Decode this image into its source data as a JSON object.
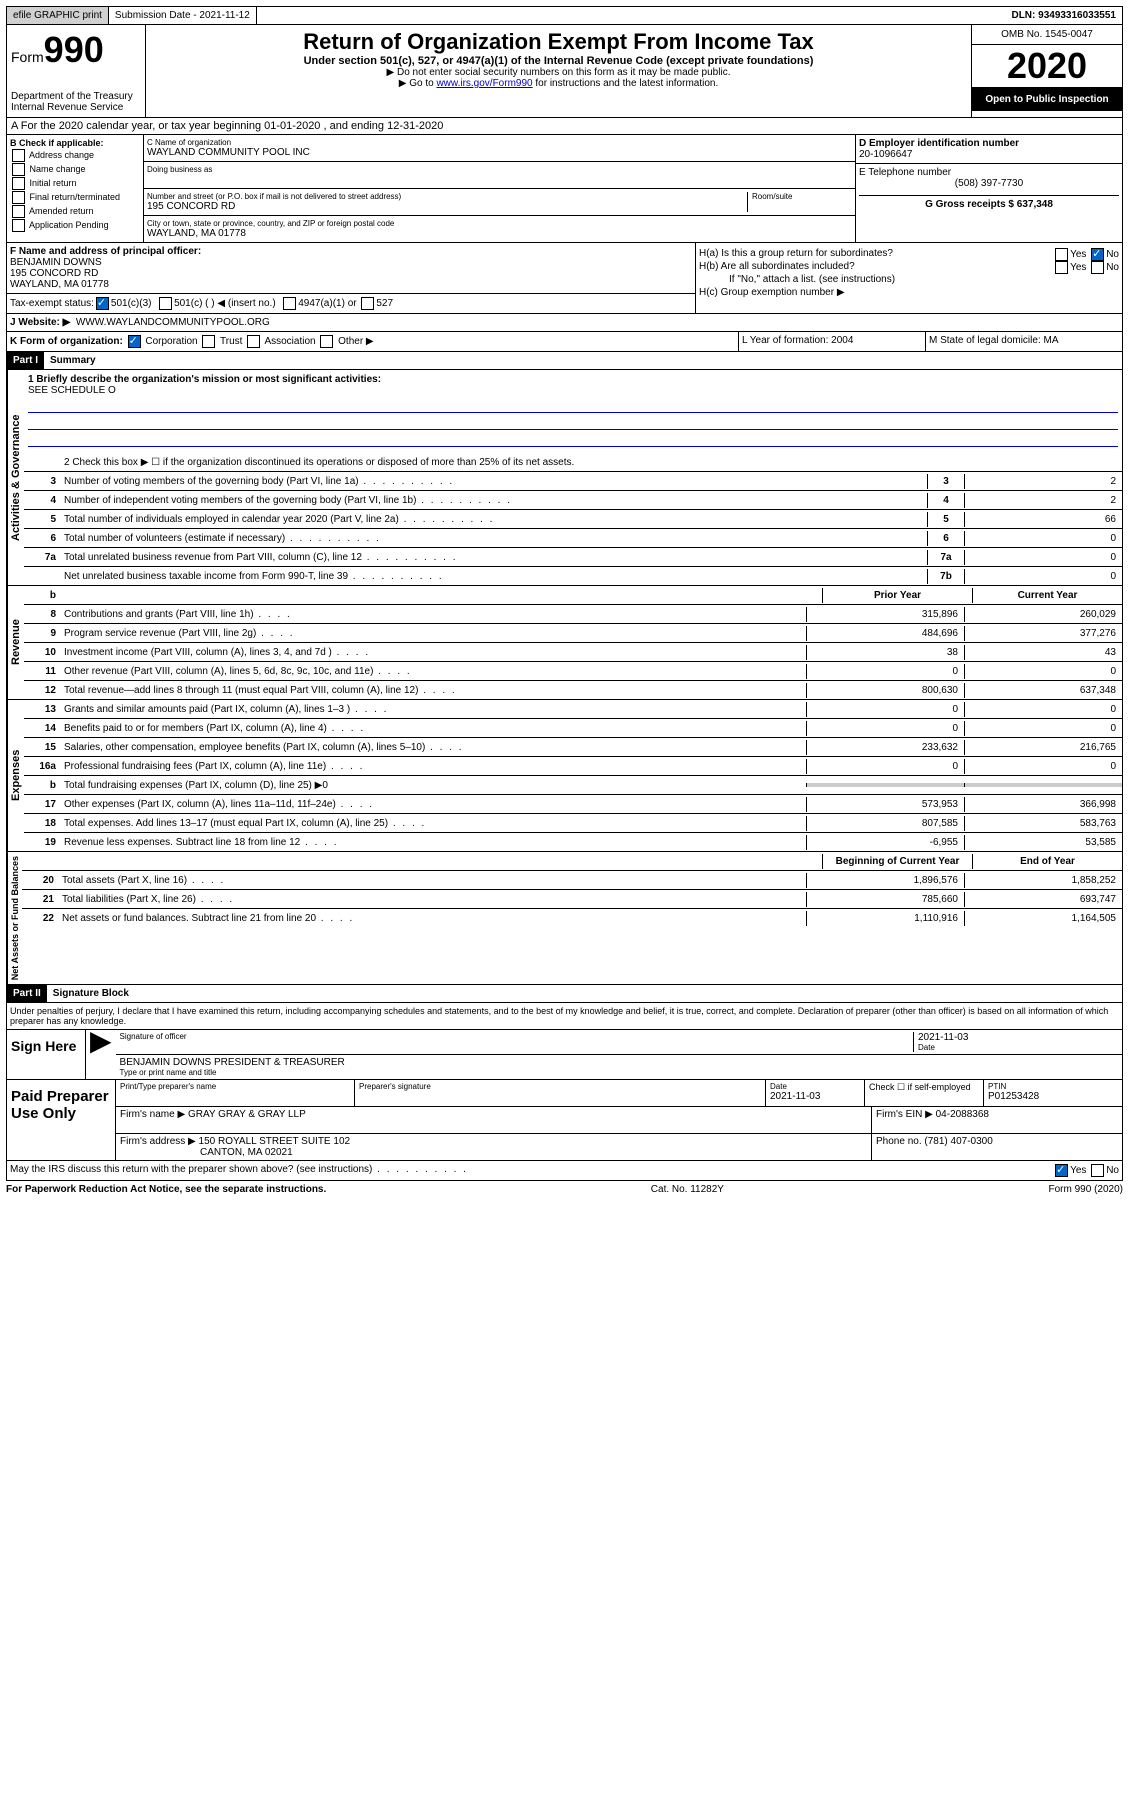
{
  "topbar": {
    "efile": "efile GRAPHIC print",
    "subm_label": "Submission Date - 2021-11-12",
    "dln": "DLN: 93493316033551"
  },
  "header": {
    "form_prefix": "Form",
    "form_num": "990",
    "dept": "Department of the Treasury",
    "irs": "Internal Revenue Service",
    "title": "Return of Organization Exempt From Income Tax",
    "sub": "Under section 501(c), 527, or 4947(a)(1) of the Internal Revenue Code (except private foundations)",
    "note1": "▶ Do not enter social security numbers on this form as it may be made public.",
    "note2_pre": "▶ Go to ",
    "note2_link": "www.irs.gov/Form990",
    "note2_post": " for instructions and the latest information.",
    "omb": "OMB No. 1545-0047",
    "year": "2020",
    "open": "Open to Public Inspection"
  },
  "section_a": "A  For the 2020 calendar year, or tax year beginning 01-01-2020    , and ending 12-31-2020",
  "box_b": {
    "label": "B Check if applicable:",
    "items": [
      "Address change",
      "Name change",
      "Initial return",
      "Final return/terminated",
      "Amended return",
      "Application Pending"
    ]
  },
  "box_c": {
    "name_label": "C Name of organization",
    "name": "WAYLAND COMMUNITY POOL INC",
    "dba_label": "Doing business as",
    "addr_label": "Number and street (or P.O. box if mail is not delivered to street address)",
    "room_label": "Room/suite",
    "addr": "195 CONCORD RD",
    "city_label": "City or town, state or province, country, and ZIP or foreign postal code",
    "city": "WAYLAND, MA  01778"
  },
  "box_d": {
    "ein_label": "D Employer identification number",
    "ein": "20-1096647",
    "phone_label": "E Telephone number",
    "phone": "(508) 397-7730",
    "gross_label": "G Gross receipts $ 637,348"
  },
  "box_f": {
    "label": "F  Name and address of principal officer:",
    "name": "BENJAMIN DOWNS",
    "addr1": "195 CONCORD RD",
    "addr2": "WAYLAND, MA  01778"
  },
  "box_h": {
    "a": "H(a)  Is this a group return for subordinates?",
    "b": "H(b)  Are all subordinates included?",
    "note": "If \"No,\" attach a list. (see instructions)",
    "c": "H(c)  Group exemption number ▶"
  },
  "tax_status": {
    "label": "Tax-exempt status:",
    "opts": [
      "501(c)(3)",
      "501(c) (  ) ◀ (insert no.)",
      "4947(a)(1) or",
      "527"
    ]
  },
  "website": {
    "label": "J  Website: ▶",
    "value": "WWW.WAYLANDCOMMUNITYPOOL.ORG"
  },
  "row_k": {
    "k": "K Form of organization:",
    "opts": [
      "Corporation",
      "Trust",
      "Association",
      "Other ▶"
    ],
    "l": "L Year of formation: 2004",
    "m": "M State of legal domicile: MA"
  },
  "part1": {
    "header": "Part I",
    "title": "Summary",
    "line1_label": "1  Briefly describe the organization's mission or most significant activities:",
    "line1_val": "SEE SCHEDULE O",
    "line2": "2   Check this box ▶ ☐ if the organization discontinued its operations or disposed of more than 25% of its net assets.",
    "rows_gov": [
      {
        "n": "3",
        "d": "Number of voting members of the governing body (Part VI, line 1a)",
        "b": "3",
        "v": "2"
      },
      {
        "n": "4",
        "d": "Number of independent voting members of the governing body (Part VI, line 1b)",
        "b": "4",
        "v": "2"
      },
      {
        "n": "5",
        "d": "Total number of individuals employed in calendar year 2020 (Part V, line 2a)",
        "b": "5",
        "v": "66"
      },
      {
        "n": "6",
        "d": "Total number of volunteers (estimate if necessary)",
        "b": "6",
        "v": "0"
      },
      {
        "n": "7a",
        "d": "Total unrelated business revenue from Part VIII, column (C), line 12",
        "b": "7a",
        "v": "0"
      },
      {
        "n": "",
        "d": "Net unrelated business taxable income from Form 990-T, line 39",
        "b": "7b",
        "v": "0"
      }
    ],
    "col_prior": "Prior Year",
    "col_curr": "Current Year",
    "rows_rev": [
      {
        "n": "8",
        "d": "Contributions and grants (Part VIII, line 1h)",
        "p": "315,896",
        "c": "260,029"
      },
      {
        "n": "9",
        "d": "Program service revenue (Part VIII, line 2g)",
        "p": "484,696",
        "c": "377,276"
      },
      {
        "n": "10",
        "d": "Investment income (Part VIII, column (A), lines 3, 4, and 7d )",
        "p": "38",
        "c": "43"
      },
      {
        "n": "11",
        "d": "Other revenue (Part VIII, column (A), lines 5, 6d, 8c, 9c, 10c, and 11e)",
        "p": "0",
        "c": "0"
      },
      {
        "n": "12",
        "d": "Total revenue—add lines 8 through 11 (must equal Part VIII, column (A), line 12)",
        "p": "800,630",
        "c": "637,348"
      }
    ],
    "rows_exp": [
      {
        "n": "13",
        "d": "Grants and similar amounts paid (Part IX, column (A), lines 1–3 )",
        "p": "0",
        "c": "0"
      },
      {
        "n": "14",
        "d": "Benefits paid to or for members (Part IX, column (A), line 4)",
        "p": "0",
        "c": "0"
      },
      {
        "n": "15",
        "d": "Salaries, other compensation, employee benefits (Part IX, column (A), lines 5–10)",
        "p": "233,632",
        "c": "216,765"
      },
      {
        "n": "16a",
        "d": "Professional fundraising fees (Part IX, column (A), line 11e)",
        "p": "0",
        "c": "0"
      },
      {
        "n": "b",
        "d": "Total fundraising expenses (Part IX, column (D), line 25) ▶0",
        "p": "",
        "c": "",
        "shaded": true
      },
      {
        "n": "17",
        "d": "Other expenses (Part IX, column (A), lines 11a–11d, 11f–24e)",
        "p": "573,953",
        "c": "366,998"
      },
      {
        "n": "18",
        "d": "Total expenses. Add lines 13–17 (must equal Part IX, column (A), line 25)",
        "p": "807,585",
        "c": "583,763"
      },
      {
        "n": "19",
        "d": "Revenue less expenses. Subtract line 18 from line 12",
        "p": "-6,955",
        "c": "53,585"
      }
    ],
    "col_beg": "Beginning of Current Year",
    "col_end": "End of Year",
    "rows_net": [
      {
        "n": "20",
        "d": "Total assets (Part X, line 16)",
        "p": "1,896,576",
        "c": "1,858,252"
      },
      {
        "n": "21",
        "d": "Total liabilities (Part X, line 26)",
        "p": "785,660",
        "c": "693,747"
      },
      {
        "n": "22",
        "d": "Net assets or fund balances. Subtract line 21 from line 20",
        "p": "1,110,916",
        "c": "1,164,505"
      }
    ]
  },
  "part2": {
    "header": "Part II",
    "title": "Signature Block",
    "penalties": "Under penalties of perjury, I declare that I have examined this return, including accompanying schedules and statements, and to the best of my knowledge and belief, it is true, correct, and complete. Declaration of preparer (other than officer) is based on all information of which preparer has any knowledge."
  },
  "sign": {
    "label": "Sign Here",
    "sig_of": "Signature of officer",
    "date": "2021-11-03",
    "date_lbl": "Date",
    "name": "BENJAMIN DOWNS PRESIDENT & TREASURER",
    "name_lbl": "Type or print name and title"
  },
  "prep": {
    "label": "Paid Preparer Use Only",
    "h1": "Print/Type preparer's name",
    "h2": "Preparer's signature",
    "h3_lbl": "Date",
    "h3": "2021-11-03",
    "h4": "Check ☐ if self-employed",
    "h5_lbl": "PTIN",
    "h5": "P01253428",
    "firm_lbl": "Firm's name    ▶",
    "firm": "GRAY GRAY & GRAY LLP",
    "firm_ein_lbl": "Firm's EIN ▶",
    "firm_ein": "04-2088368",
    "addr_lbl": "Firm's address ▶",
    "addr1": "150 ROYALL STREET SUITE 102",
    "addr2": "CANTON, MA  02021",
    "phone_lbl": "Phone no.",
    "phone": "(781) 407-0300",
    "discuss": "May the IRS discuss this return with the preparer shown above? (see instructions)"
  },
  "footer": {
    "left": "For Paperwork Reduction Act Notice, see the separate instructions.",
    "mid": "Cat. No. 11282Y",
    "right": "Form 990 (2020)"
  },
  "labels": {
    "yes": "Yes",
    "no": "No",
    "rot_gov": "Activities & Governance",
    "rot_rev": "Revenue",
    "rot_exp": "Expenses",
    "rot_net": "Net Assets or Fund Balances",
    "b": "b"
  }
}
